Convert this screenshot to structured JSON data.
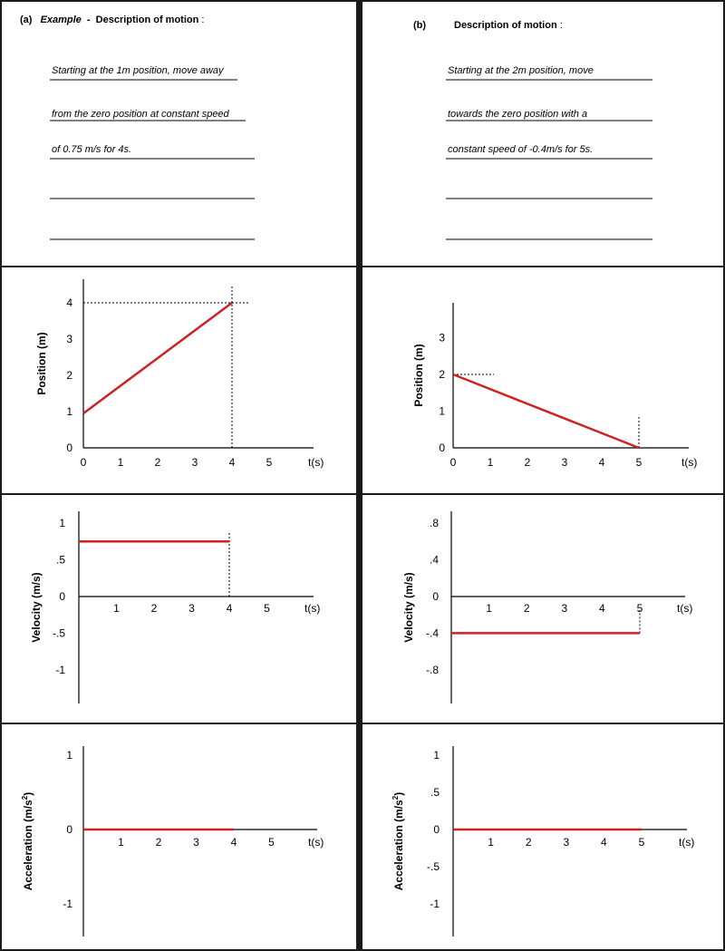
{
  "panel_a": {
    "label": "(a)",
    "example": "Example",
    "dash": " - ",
    "heading": "Description of motion",
    "colon": ":",
    "lines": [
      "Starting at the 1m position, move away",
      "from the zero position at constant speed",
      "of 0.75 m/s for 4s.",
      "",
      ""
    ]
  },
  "panel_b": {
    "label": "(b)",
    "heading": "Description of motion",
    "colon": ":",
    "lines": [
      "Starting at the 2m position, move",
      "towards the zero position with a",
      "constant speed of -0.4m/s for 5s.",
      "",
      ""
    ]
  },
  "colors": {
    "data_line": "#cc2222",
    "frame": "#1a1a1a",
    "axis": "#000000"
  },
  "chart_data": [
    {
      "id": "a-position",
      "type": "line",
      "ylabel": "Position (m)",
      "xunit": "t(s)",
      "xlim": [
        0,
        6
      ],
      "ylim": [
        0,
        4.5
      ],
      "xticks": [
        "0",
        "1",
        "2",
        "3",
        "4",
        "5"
      ],
      "yticks": [
        "0",
        "1",
        "2",
        "3",
        "4"
      ],
      "series": [
        {
          "x": [
            0,
            4
          ],
          "y": [
            0.95,
            4
          ]
        }
      ],
      "guides": [
        {
          "x": [
            0,
            4.45
          ],
          "y": [
            4,
            4
          ]
        },
        {
          "x": [
            4,
            4
          ],
          "y": [
            0,
            4.45
          ]
        }
      ]
    },
    {
      "id": "b-position",
      "type": "line",
      "ylabel": "Position (m)",
      "xunit": "t(s)",
      "xlim": [
        0,
        6.2
      ],
      "ylim": [
        0,
        4
      ],
      "xticks": [
        "0",
        "1",
        "2",
        "3",
        "4",
        "5"
      ],
      "yticks": [
        "0",
        "1",
        "2",
        "3"
      ],
      "series": [
        {
          "x": [
            0,
            5
          ],
          "y": [
            2,
            0
          ]
        }
      ],
      "guides": [
        {
          "x": [
            0,
            1.1
          ],
          "y": [
            2,
            2
          ]
        },
        {
          "x": [
            5,
            5
          ],
          "y": [
            0,
            0.85
          ]
        }
      ]
    },
    {
      "id": "a-velocity",
      "type": "line",
      "ylabel": "Velocity (m/s)",
      "xunit": "t(s)",
      "xlim": [
        0,
        6
      ],
      "ylim": [
        -1.45,
        1.3
      ],
      "xticks": [
        "1",
        "2",
        "3",
        "4",
        "5"
      ],
      "xtick_values": [
        1,
        2,
        3,
        4,
        5
      ],
      "yticks": [
        "1",
        ".5",
        "0",
        "-.5",
        "-1"
      ],
      "ytick_values": [
        1,
        0.5,
        0,
        -0.5,
        -1
      ],
      "series": [
        {
          "x": [
            0,
            4
          ],
          "y": [
            0.75,
            0.75
          ]
        }
      ],
      "guides": [
        {
          "x": [
            4,
            4
          ],
          "y": [
            0,
            0.87
          ]
        }
      ]
    },
    {
      "id": "b-velocity",
      "type": "line",
      "ylabel": "Velocity (m/s)",
      "xunit": "t(s)",
      "xlim": [
        0,
        6.2
      ],
      "ylim": [
        -1.05,
        1.05
      ],
      "xticks": [
        "1",
        "2",
        "3",
        "4",
        "5"
      ],
      "xtick_values": [
        1,
        2,
        3,
        4,
        5
      ],
      "yticks": [
        ".8",
        ".4",
        "0",
        "-.4",
        "-.8"
      ],
      "ytick_values": [
        0.8,
        0.4,
        0,
        -0.4,
        -0.8
      ],
      "series": [
        {
          "x": [
            0,
            5
          ],
          "y": [
            -0.4,
            -0.4
          ]
        }
      ],
      "guides": [
        {
          "x": [
            5,
            5
          ],
          "y": [
            -0.4,
            -0.15
          ]
        }
      ]
    },
    {
      "id": "a-acceleration",
      "type": "line",
      "ylabel": "Acceleration (m/s2)",
      "ylabel_main": "Acceleration (m/s",
      "ylabel_sup": "2",
      "ylabel_end": ")",
      "xunit": "t(s)",
      "xlim": [
        0,
        6
      ],
      "ylim": [
        -1.45,
        1.15
      ],
      "xticks": [
        "1",
        "2",
        "3",
        "4",
        "5"
      ],
      "xtick_values": [
        1,
        2,
        3,
        4,
        5
      ],
      "yticks": [
        "1",
        "0",
        "-1"
      ],
      "ytick_values": [
        1,
        0,
        -1
      ],
      "series": [
        {
          "x": [
            0,
            4
          ],
          "y": [
            0,
            0
          ]
        }
      ],
      "guides": []
    },
    {
      "id": "b-acceleration",
      "type": "line",
      "ylabel": "Acceleration (m/s2)",
      "ylabel_main": "Acceleration (m/s",
      "ylabel_sup": "2",
      "ylabel_end": ")",
      "xunit": "t(s)",
      "xlim": [
        0,
        6.2
      ],
      "ylim": [
        -1.45,
        1.15
      ],
      "xticks": [
        "1",
        "2",
        "3",
        "4",
        "5"
      ],
      "xtick_values": [
        1,
        2,
        3,
        4,
        5
      ],
      "yticks": [
        "1",
        ".5",
        "0",
        "-.5",
        "-1"
      ],
      "ytick_values": [
        1,
        0.5,
        0,
        -0.5,
        -1
      ],
      "series": [
        {
          "x": [
            0,
            5
          ],
          "y": [
            0,
            0
          ]
        }
      ],
      "guides": []
    }
  ]
}
